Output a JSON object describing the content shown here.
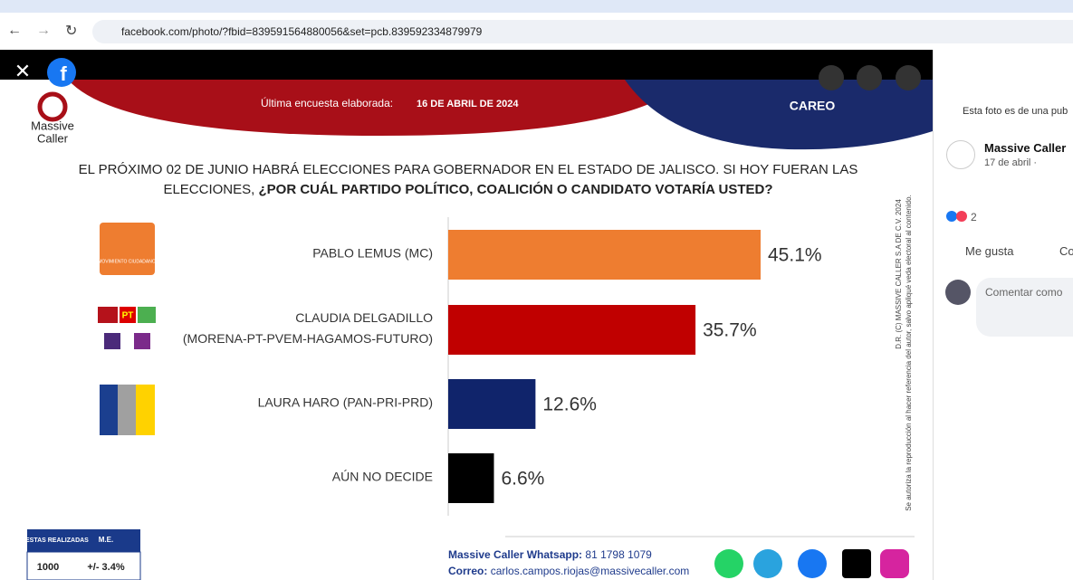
{
  "browser": {
    "url": "facebook.com/photo/?fbid=839591564880056&set=pcb.839592334879979"
  },
  "photo": {
    "brand": [
      "Massive",
      "Caller"
    ],
    "survey_label": "Última encuesta elaborada:",
    "survey_date": "16 DE ABRIL DE 2024",
    "section": "CAREO",
    "question": {
      "line1": "EL PRÓXIMO 02 DE JUNIO HABRÁ ELECCIONES PARA GOBERNADOR EN EL ESTADO DE JALISCO. SI HOY FUERAN LAS",
      "line2_plain": "ELECCIONES,",
      "line2_bold": "¿POR CUÁL PARTIDO POLÍTICO, COALICIÓN O CANDIDATO VOTARÍA USTED?"
    },
    "chart": {
      "type": "bar",
      "categories": [
        [
          "PABLO LEMUS (MC)"
        ],
        [
          "CLAUDIA DELGADILLO",
          "(MORENA-PT-PVEM-HAGAMOS-FUTURO)"
        ],
        [
          "LAURA HARO (PAN-PRI-PRD)"
        ],
        [
          "AÚN NO DECIDE"
        ]
      ],
      "values": [
        45.1,
        35.7,
        12.6,
        6.6
      ],
      "value_labels": [
        "45.1%",
        "35.7%",
        "12.6%",
        "6.6%"
      ],
      "colors": [
        "#ee7d30",
        "#c00000",
        "#10246b",
        "#000000"
      ]
    },
    "logos": {
      "mc": "MOVIMIENTO CIUDADANO",
      "pt": "PT"
    },
    "side_note": [
      "D.R. (C) MASSIVE CALLER S.A DE C.V. 2024",
      "Se autoriza la reproducción al hacer referencia del autor, salvo apliqué veda electoral al contenido."
    ],
    "table": {
      "headers": [
        "ENCUESTAS REALIZADAS",
        "M.E."
      ],
      "row": [
        "1000",
        "+/- 3.4%"
      ]
    },
    "contact": {
      "whatsapp_label": "Massive Caller Whatsapp:",
      "whatsapp": "81 1798 1079",
      "email_label": "Correo:",
      "email": "carlos.campos.riojas@massivecaller.com"
    }
  },
  "sidebar": {
    "notice": "Esta foto es de una pub",
    "author": "Massive Caller",
    "date": "17 de abril ·",
    "reactions": "2",
    "like": "Me gusta",
    "comment": "Co",
    "comment_as": "Comentar como"
  }
}
